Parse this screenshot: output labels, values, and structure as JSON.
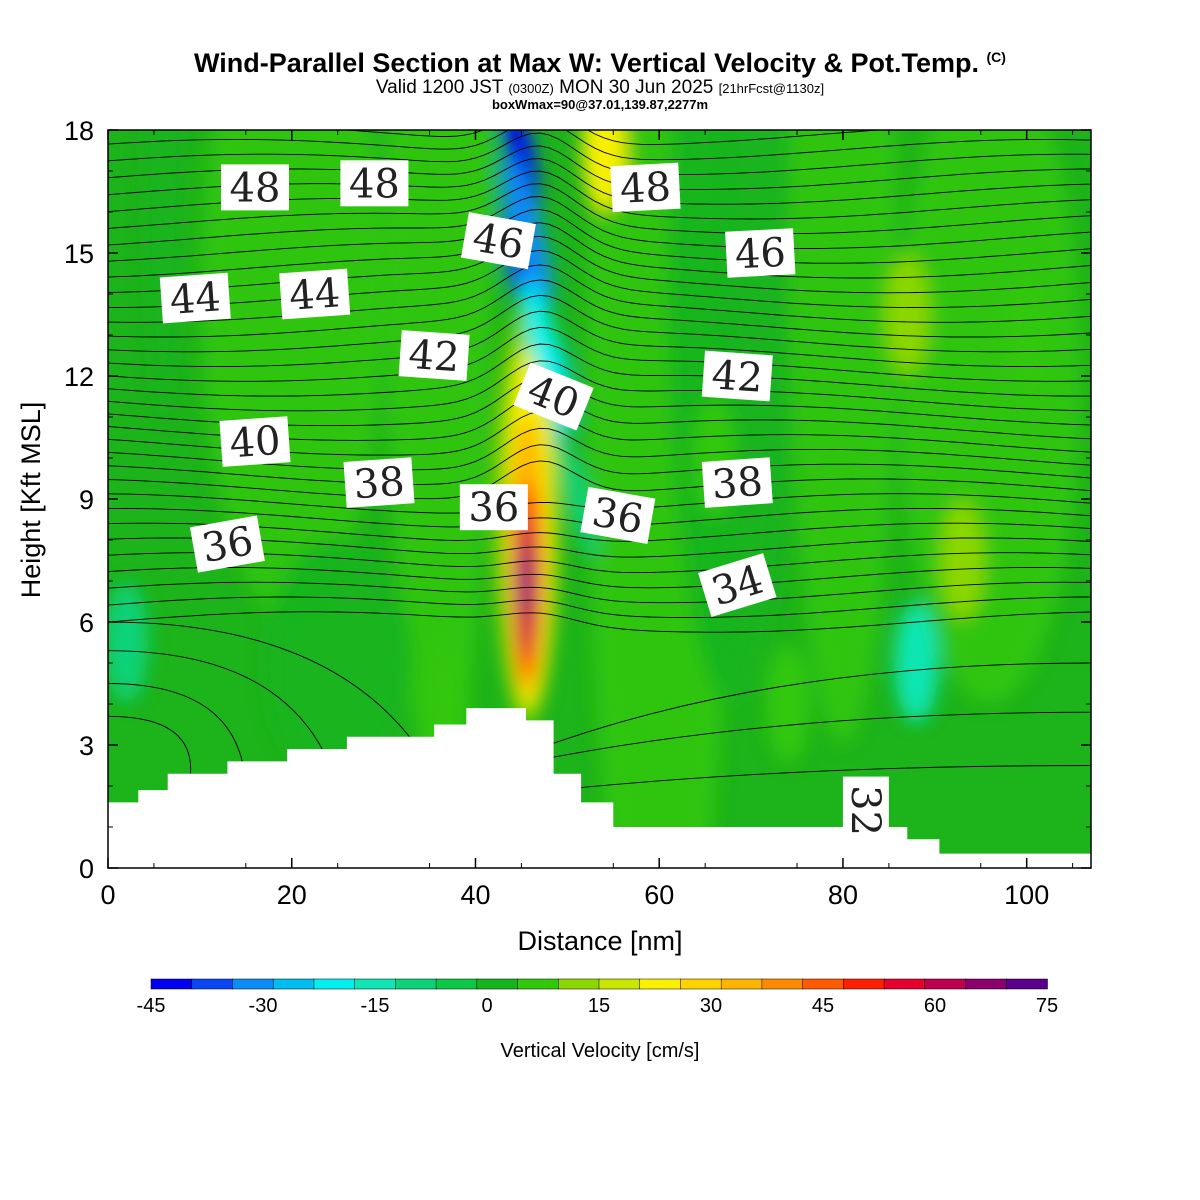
{
  "title": {
    "main": "Wind-Parallel Section at Max W: Vertical Velocity & Pot.Temp.",
    "copyright": "(C)",
    "valid_prefix": "Valid 1200 JST",
    "valid_utc": "(0300Z)",
    "valid_date": "MON 30 Jun 2025",
    "forecast": "[21hrFcst@1130z]",
    "box_info": "boxWmax=90@37.01,139.87,2277m"
  },
  "colors": {
    "background_field": "#1db31a",
    "terrain": "#ffffff",
    "contour": "#000000",
    "scale": [
      "#0000f0",
      "#0a46f6",
      "#0a8cf6",
      "#00bef0",
      "#00f0f0",
      "#0ee6b4",
      "#0ad278",
      "#0ac846",
      "#14b41e",
      "#32c80a",
      "#8cd700",
      "#c8e600",
      "#faf000",
      "#ffd200",
      "#ffb400",
      "#ff8c00",
      "#ff5a00",
      "#ff1e00",
      "#e6002d",
      "#be0050",
      "#8c006e",
      "#5a008c"
    ]
  },
  "chart_data": {
    "type": "heatmap",
    "xlabel": "Distance [nm]",
    "ylabel": "Height [Kft MSL]",
    "xlim": [
      0,
      107
    ],
    "ylim": [
      0,
      18
    ],
    "xticks": [
      0,
      20,
      40,
      60,
      80,
      100
    ],
    "yticks": [
      0,
      3,
      6,
      9,
      12,
      15,
      18
    ],
    "colorbar": {
      "label": "Vertical Velocity [cm/s]",
      "min": -45,
      "max": 75,
      "step": 5,
      "tick_labels": [
        "-45",
        "-30",
        "-15",
        "0",
        "15",
        "30",
        "45",
        "60",
        "75"
      ]
    },
    "terrain_profile": [
      [
        0,
        1.6
      ],
      [
        3.3,
        1.6
      ],
      [
        3.3,
        1.9
      ],
      [
        6.5,
        1.9
      ],
      [
        6.5,
        2.3
      ],
      [
        13,
        2.3
      ],
      [
        13,
        2.6
      ],
      [
        19.5,
        2.6
      ],
      [
        19.5,
        2.9
      ],
      [
        26,
        2.9
      ],
      [
        26,
        3.2
      ],
      [
        35.5,
        3.2
      ],
      [
        35.5,
        3.5
      ],
      [
        39,
        3.5
      ],
      [
        39,
        3.9
      ],
      [
        45.5,
        3.9
      ],
      [
        45.5,
        3.6
      ],
      [
        48.5,
        3.6
      ],
      [
        48.5,
        2.3
      ],
      [
        51.5,
        2.3
      ],
      [
        51.5,
        1.6
      ],
      [
        55,
        1.6
      ],
      [
        55,
        1.0
      ],
      [
        87,
        1.0
      ],
      [
        87,
        0.7
      ],
      [
        90.5,
        0.7
      ],
      [
        90.5,
        0.35
      ],
      [
        107,
        0.35
      ]
    ],
    "vertical_velocity_features": [
      {
        "x": 45.6,
        "y": 7.0,
        "peak": 75
      },
      {
        "x": 45.6,
        "y": 5.8,
        "peak": 55
      },
      {
        "x": 46.6,
        "y": 10.0,
        "peak": 35
      },
      {
        "x": 54.0,
        "y": 17.5,
        "peak": 25
      },
      {
        "x": 45.0,
        "y": 16.0,
        "peak": -35
      },
      {
        "x": 48.0,
        "y": 11.5,
        "peak": -25
      },
      {
        "x": 88.0,
        "y": 5.0,
        "peak": -15
      },
      {
        "x": 2.0,
        "y": 5.5,
        "peak": -10
      },
      {
        "x": 100.0,
        "y": 13.0,
        "peak": 5
      },
      {
        "x": 87.0,
        "y": 13.5,
        "peak": 10
      },
      {
        "x": 93.0,
        "y": 7.5,
        "peak": 12
      },
      {
        "x": 74.0,
        "y": 4.0,
        "peak": 8
      },
      {
        "x": 37.0,
        "y": 4.0,
        "peak": 8
      },
      {
        "x": 66.0,
        "y": 10.0,
        "peak": 5
      }
    ],
    "theta_contour_labels": [
      {
        "text": "48",
        "x": 16,
        "y": 16.6,
        "angle": 0
      },
      {
        "text": "48",
        "x": 29,
        "y": 16.7,
        "angle": 0
      },
      {
        "text": "48",
        "x": 58.5,
        "y": 16.6,
        "angle": -3
      },
      {
        "text": "46",
        "x": 42.5,
        "y": 15.3,
        "angle": 10
      },
      {
        "text": "46",
        "x": 71,
        "y": 15.0,
        "angle": -3
      },
      {
        "text": "44",
        "x": 9.5,
        "y": 13.9,
        "angle": -4
      },
      {
        "text": "44",
        "x": 22.5,
        "y": 14.0,
        "angle": -4
      },
      {
        "text": "42",
        "x": 35.5,
        "y": 12.5,
        "angle": 4
      },
      {
        "text": "42",
        "x": 68.5,
        "y": 12.0,
        "angle": 4
      },
      {
        "text": "40",
        "x": 16,
        "y": 10.4,
        "angle": -4
      },
      {
        "text": "40",
        "x": 48.5,
        "y": 11.5,
        "angle": 22
      },
      {
        "text": "38",
        "x": 29.5,
        "y": 9.4,
        "angle": -4
      },
      {
        "text": "38",
        "x": 68.5,
        "y": 9.4,
        "angle": -4
      },
      {
        "text": "36",
        "x": 13,
        "y": 7.9,
        "angle": -10
      },
      {
        "text": "36",
        "x": 42,
        "y": 8.8,
        "angle": 0
      },
      {
        "text": "36",
        "x": 55.5,
        "y": 8.6,
        "angle": 10
      },
      {
        "text": "34",
        "x": 68.5,
        "y": 6.9,
        "angle": -17
      },
      {
        "text": "32",
        "x": 82.5,
        "y": 1.4,
        "angle": 90
      }
    ]
  }
}
